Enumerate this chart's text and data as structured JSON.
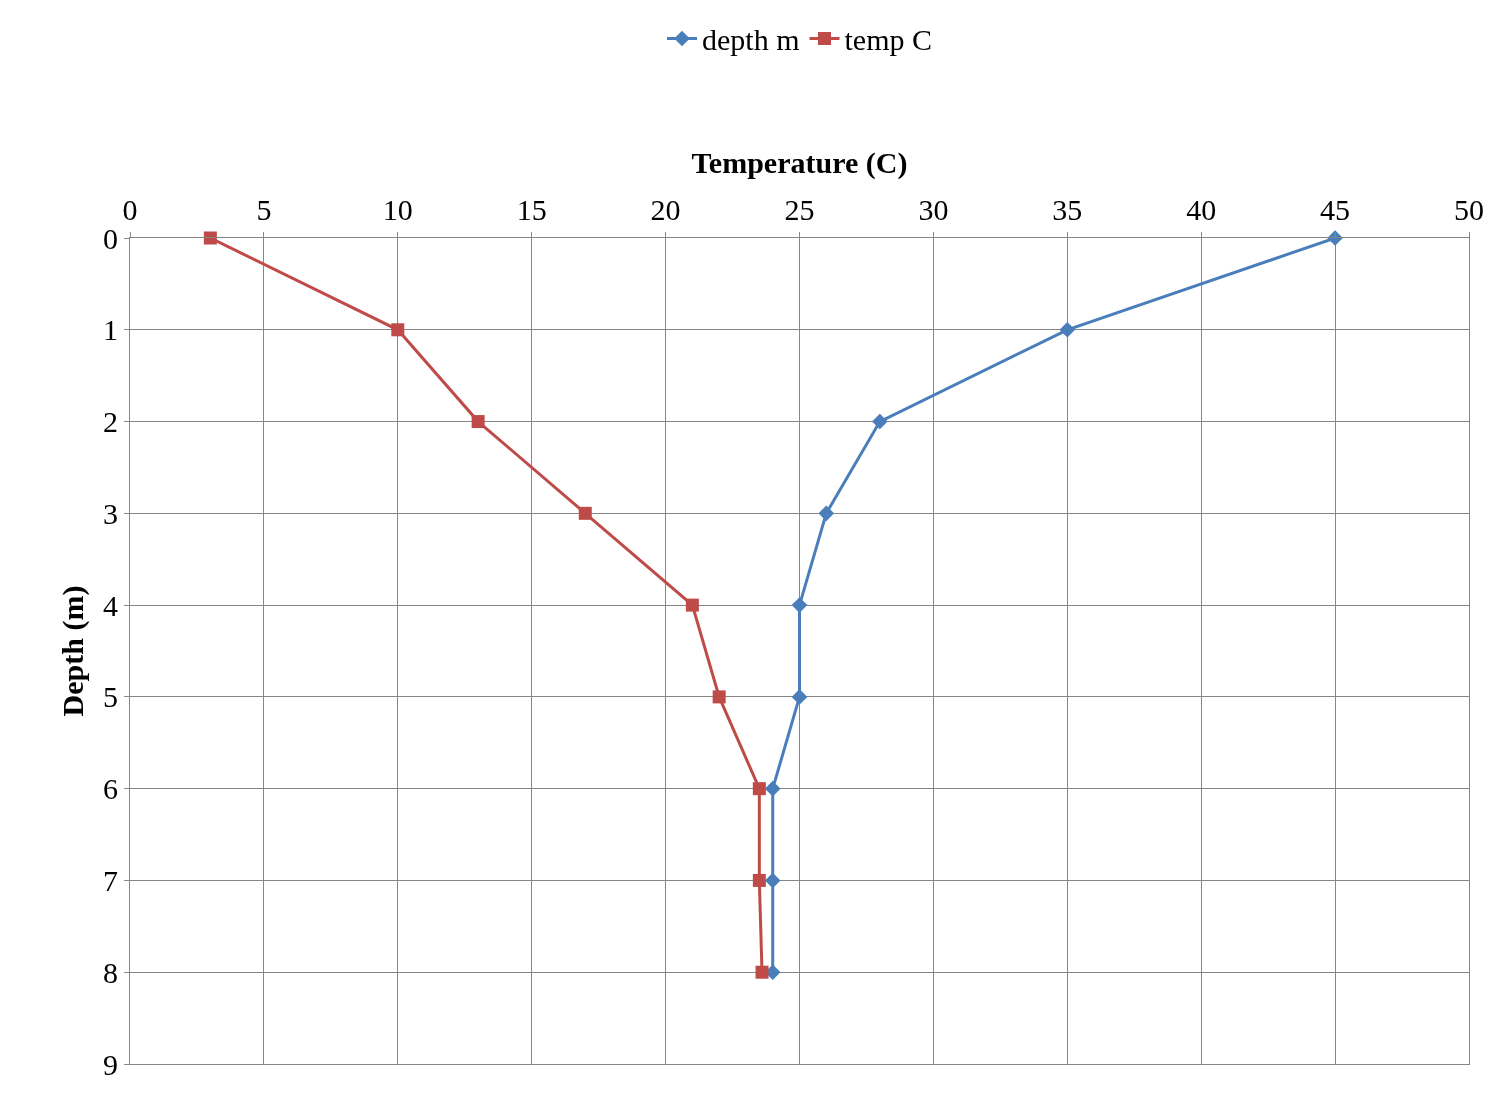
{
  "chart_data": {
    "type": "line",
    "xlabel": "Temperature (C)",
    "ylabel": "Depth (m)",
    "series": [
      {
        "name": "depth m",
        "color": "#4a7ebb",
        "marker": "diamond",
        "x": [
          45,
          35,
          28,
          26,
          25,
          25,
          24,
          24,
          24
        ],
        "values": [
          0,
          1,
          2,
          3,
          4,
          5,
          6,
          7,
          8
        ]
      },
      {
        "name": "temp C",
        "color": "#be4b48",
        "marker": "square",
        "x": [
          3,
          10,
          13,
          17,
          21,
          22,
          23.5,
          23.5,
          23.6
        ],
        "values": [
          0,
          1,
          2,
          3,
          4,
          5,
          6,
          7,
          8
        ]
      }
    ],
    "xlim": [
      0,
      50
    ],
    "xticks": [
      0,
      5,
      10,
      15,
      20,
      25,
      30,
      35,
      40,
      45,
      50
    ],
    "ylim": [
      9,
      0
    ],
    "yticks": [
      0,
      1,
      2,
      3,
      4,
      5,
      6,
      7,
      8,
      9
    ],
    "grid": true,
    "legend": "top",
    "line_style": "solid"
  }
}
